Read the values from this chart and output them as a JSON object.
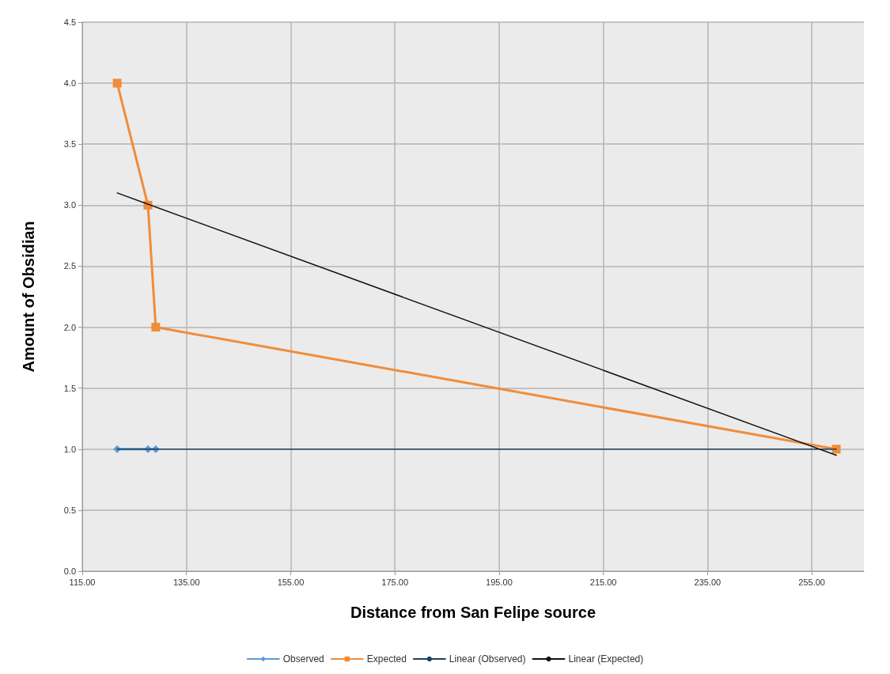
{
  "chart_data": {
    "type": "line",
    "xlabel": "Distance from San Felipe source",
    "ylabel": "Amount of Obsidian",
    "xlim": [
      115,
      265
    ],
    "xticks": [
      {
        "value": 115,
        "label": "115.00"
      },
      {
        "value": 135,
        "label": "135.00"
      },
      {
        "value": 155,
        "label": "155.00"
      },
      {
        "value": 175,
        "label": "175.00"
      },
      {
        "value": 195,
        "label": "195.00"
      },
      {
        "value": 215,
        "label": "215.00"
      },
      {
        "value": 235,
        "label": "235.00"
      },
      {
        "value": 255,
        "label": "255.00"
      }
    ],
    "ylim": [
      0,
      4.5
    ],
    "yticks": [
      {
        "value": 0,
        "label": "0.0"
      },
      {
        "value": 0.5,
        "label": "0.5"
      },
      {
        "value": 1,
        "label": "1.0"
      },
      {
        "value": 1.5,
        "label": "1.5"
      },
      {
        "value": 2,
        "label": "2.0"
      },
      {
        "value": 2.5,
        "label": "2.5"
      },
      {
        "value": 3,
        "label": "3.0"
      },
      {
        "value": 3.5,
        "label": "3.5"
      },
      {
        "value": 4,
        "label": "4.0"
      },
      {
        "value": 4.5,
        "label": "4.5"
      }
    ],
    "grid": true,
    "legend": "bottom",
    "series": [
      {
        "name": "Observed",
        "color": "#5b9bd5",
        "marker": "diamond",
        "x": [
          121.7,
          127.6,
          129.1
        ],
        "values": [
          1,
          1,
          1
        ]
      },
      {
        "name": "Expected",
        "color": "#f08c3a",
        "marker": "square",
        "x": [
          121.7,
          127.6,
          129.1,
          259.7
        ],
        "values": [
          4,
          3,
          2,
          1
        ]
      },
      {
        "name": "Linear (Observed)",
        "color": "#1f3f60",
        "marker": "none",
        "x": [
          121.7,
          259.7
        ],
        "values": [
          1,
          1
        ]
      },
      {
        "name": "Linear (Expected)",
        "color": "#111111",
        "marker": "none",
        "x": [
          121.7,
          259.7
        ],
        "values": [
          3.1,
          0.95
        ]
      }
    ]
  }
}
